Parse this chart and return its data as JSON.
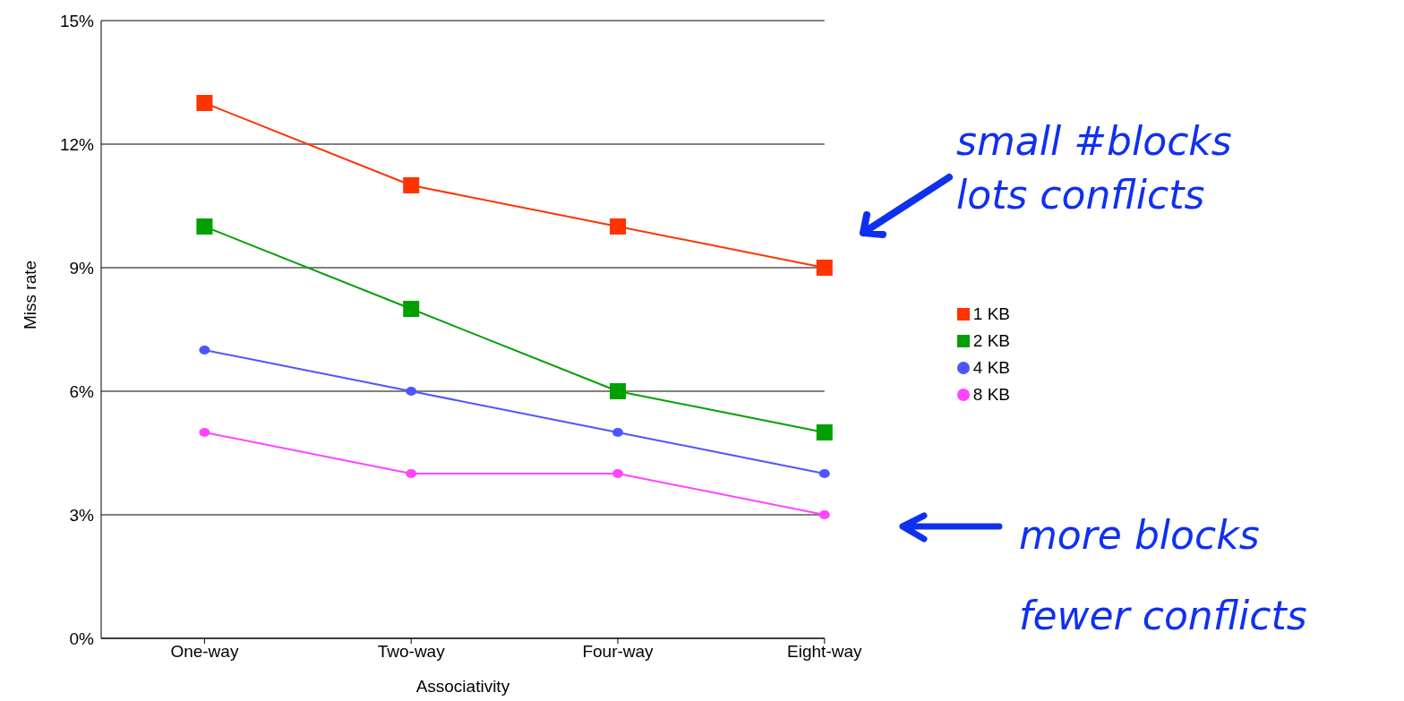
{
  "chart_data": {
    "type": "line",
    "categories": [
      "One-way",
      "Two-way",
      "Four-way",
      "Eight-way"
    ],
    "xlabel": "Associativity",
    "ylabel": "Miss rate",
    "ylim": [
      0,
      15
    ],
    "yticks": [
      {
        "value": 0,
        "label": "0%"
      },
      {
        "value": 3,
        "label": "3%"
      },
      {
        "value": 6,
        "label": "6%"
      },
      {
        "value": 9,
        "label": "9%"
      },
      {
        "value": 12,
        "label": "12%"
      },
      {
        "value": 15,
        "label": "15%"
      }
    ],
    "grid": "y",
    "legend": "right",
    "series": [
      {
        "name": "1 KB",
        "color": "#ff3300",
        "marker": "square",
        "values": [
          13,
          11,
          10,
          9
        ]
      },
      {
        "name": "2 KB",
        "color": "#00a000",
        "marker": "square",
        "values": [
          10,
          8,
          6,
          5
        ]
      },
      {
        "name": "4 KB",
        "color": "#4d55ff",
        "marker": "circle",
        "values": [
          7,
          6,
          5,
          4
        ]
      },
      {
        "name": "8 KB",
        "color": "#ff44ff",
        "marker": "circle",
        "values": [
          5,
          4,
          4,
          3
        ]
      }
    ],
    "annotations": [
      "small #blocks\nlots conflicts",
      "more blocks\nfewer conflicts"
    ]
  }
}
